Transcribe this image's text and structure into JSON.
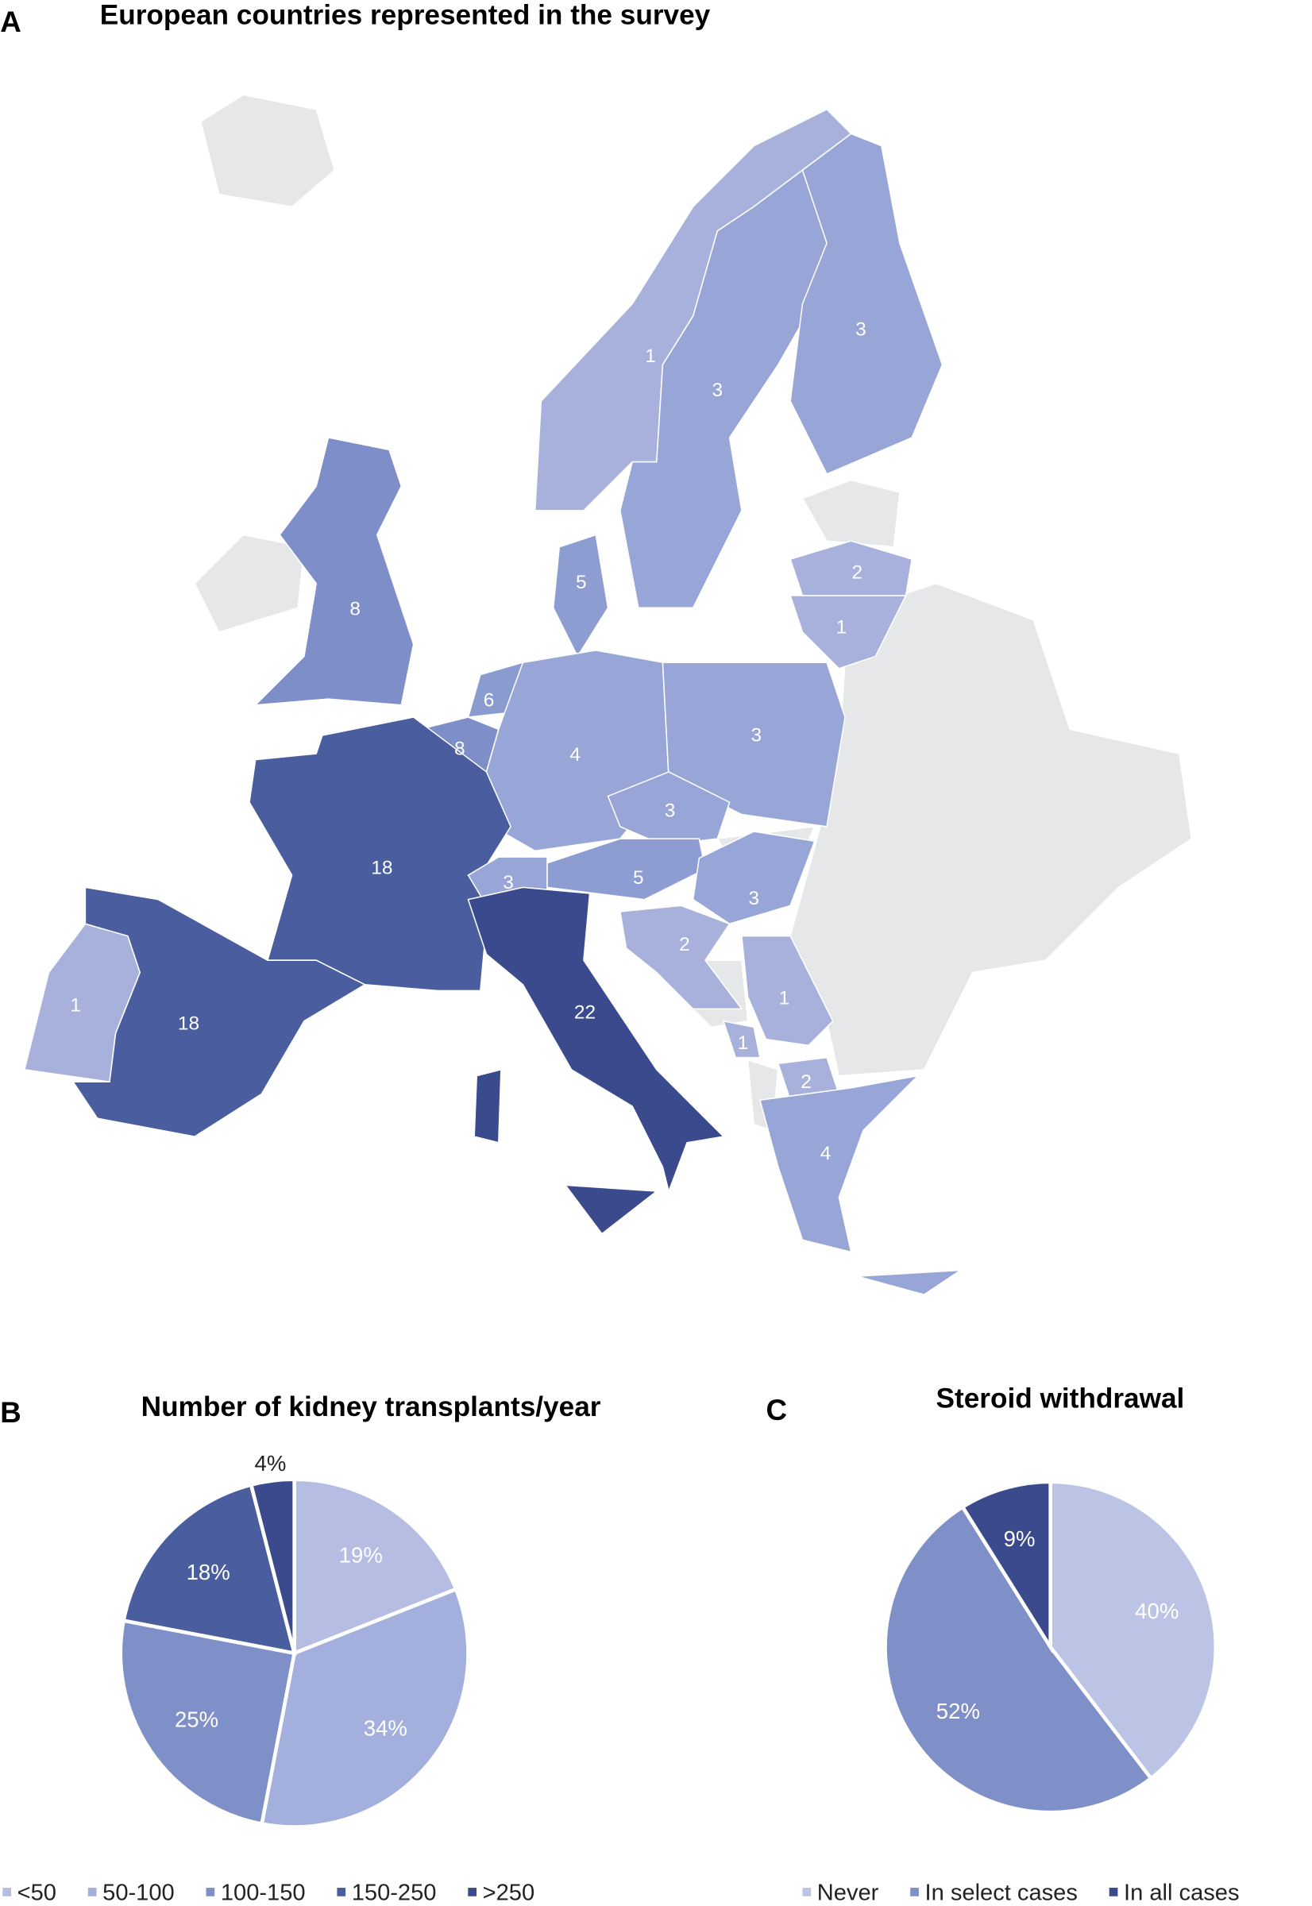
{
  "chart_data": [
    {
      "type": "choropleth",
      "panel": "A",
      "title": "European countries represented in the survey",
      "values": [
        1,
        3,
        3,
        8,
        5,
        2,
        1,
        6,
        8,
        4,
        3,
        3,
        18,
        3,
        5,
        3,
        2,
        1,
        18,
        22,
        1,
        1,
        2,
        4
      ],
      "colors": [
        "#a7b1dc",
        "#97a6d6",
        "#97a6d6",
        "#7d8ec8",
        "#8d9dd2",
        "#a7b1dc",
        "#a7b1dc",
        "#8a9bd0",
        "#7d8ec8",
        "#97a6d6",
        "#97a6d6",
        "#97a6d6",
        "#4a5d9e",
        "#97a6d6",
        "#8d9dd2",
        "#97a6d6",
        "#a7b1dc",
        "#a7b1dc",
        "#4a5d9e",
        "#3a4a8c",
        "#a7b1dc",
        "#a7b1dc",
        "#a7b1dc",
        "#97a6d6"
      ]
    },
    {
      "type": "pie",
      "panel": "B",
      "title": "Number of kidney transplants/year",
      "categories": [
        "<50",
        "50-100",
        "100-150",
        "150-250",
        ">250"
      ],
      "values": [
        19,
        34,
        25,
        18,
        4
      ],
      "value_labels": [
        "19%",
        "34%",
        "25%",
        "18%",
        "4%"
      ],
      "colors": [
        "#b5bde3",
        "#a3afdd",
        "#7f90c8",
        "#4a5d9e",
        "#3a4a8c"
      ]
    },
    {
      "type": "pie",
      "panel": "C",
      "title": "Steroid withdrawal",
      "categories": [
        "Never",
        "In select cases",
        "In all cases"
      ],
      "values": [
        40,
        52,
        9
      ],
      "value_labels": [
        "40%",
        "52%",
        "9%"
      ],
      "colors": [
        "#bcc4e6",
        "#7f90c8",
        "#3a4a8c"
      ]
    }
  ]
}
